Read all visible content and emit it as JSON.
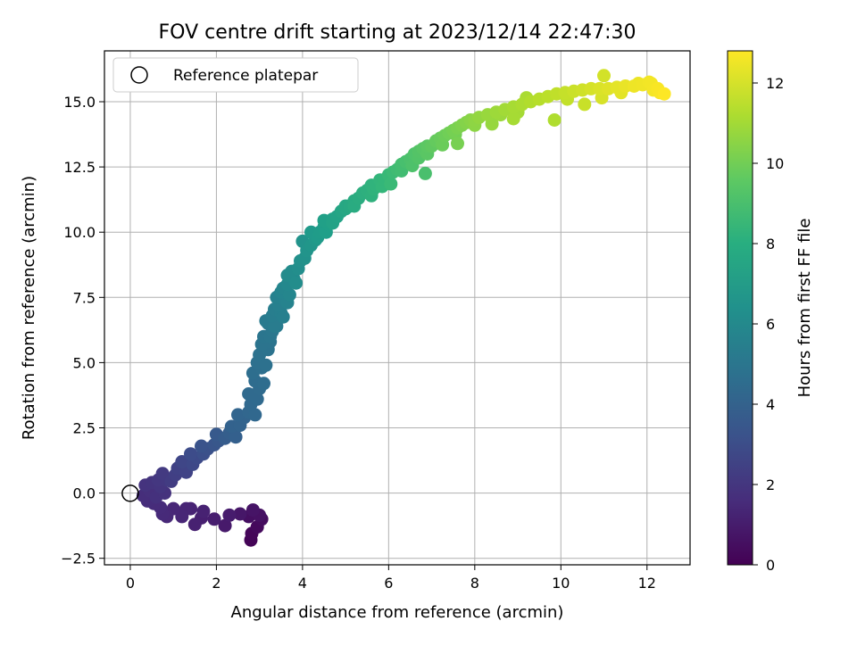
{
  "chart_data": {
    "type": "scatter",
    "title": "FOV centre drift starting at 2023/12/14 22:47:30",
    "xlabel": "Angular distance from reference (arcmin)",
    "ylabel": "Rotation from reference (arcmin)",
    "xlim": [
      -0.6,
      13.0
    ],
    "ylim": [
      -2.75,
      16.95
    ],
    "xticks": [
      0,
      2,
      4,
      6,
      8,
      10,
      12
    ],
    "xtick_labels": [
      "0",
      "2",
      "4",
      "6",
      "8",
      "10",
      "12"
    ],
    "yticks": [
      -2.5,
      0.0,
      2.5,
      5.0,
      7.5,
      10.0,
      12.5,
      15.0
    ],
    "ytick_labels": [
      "−2.5",
      "0.0",
      "2.5",
      "5.0",
      "7.5",
      "10.0",
      "12.5",
      "15.0"
    ],
    "grid": true,
    "legend": {
      "placement": "top-left",
      "entries": [
        "Reference platepar"
      ]
    },
    "reference_point": {
      "x": 0,
      "y": 0
    },
    "colorbar": {
      "label": "Hours from first FF file",
      "range": [
        0,
        12.8
      ],
      "ticks": [
        0,
        2,
        4,
        6,
        8,
        10,
        12
      ],
      "tick_labels": [
        "0",
        "2",
        "4",
        "6",
        "8",
        "10",
        "12"
      ],
      "colormap": "viridis"
    },
    "series": [
      {
        "points": [
          [
            2.8,
            -1.8,
            0.1
          ],
          [
            2.82,
            -1.55,
            0.2
          ],
          [
            2.95,
            -1.3,
            0.3
          ],
          [
            3.05,
            -1.0,
            0.4
          ],
          [
            2.75,
            -0.9,
            0.5
          ],
          [
            3.0,
            -0.85,
            0.6
          ],
          [
            2.85,
            -0.65,
            0.7
          ],
          [
            2.55,
            -0.8,
            0.8
          ],
          [
            2.2,
            -1.25,
            0.9
          ],
          [
            2.3,
            -0.85,
            1.0
          ],
          [
            1.95,
            -1.0,
            1.05
          ],
          [
            1.65,
            -0.95,
            1.1
          ],
          [
            1.5,
            -1.2,
            1.15
          ],
          [
            1.7,
            -0.7,
            1.2
          ],
          [
            1.4,
            -0.6,
            1.25
          ],
          [
            1.3,
            -0.6,
            1.3
          ],
          [
            1.2,
            -0.9,
            1.35
          ],
          [
            1.0,
            -0.6,
            1.4
          ],
          [
            0.85,
            -0.9,
            1.45
          ],
          [
            0.75,
            -0.8,
            1.5
          ],
          [
            0.7,
            -0.55,
            1.55
          ],
          [
            0.55,
            -0.4,
            1.6
          ],
          [
            0.4,
            -0.3,
            1.65
          ],
          [
            0.3,
            -0.1,
            1.7
          ],
          [
            0.45,
            0.1,
            1.75
          ],
          [
            0.6,
            -0.15,
            1.8
          ],
          [
            0.8,
            0.0,
            1.85
          ],
          [
            0.35,
            0.3,
            1.9
          ],
          [
            0.5,
            0.4,
            1.95
          ],
          [
            0.7,
            0.25,
            2.0
          ],
          [
            0.65,
            0.5,
            2.05
          ],
          [
            0.85,
            0.5,
            2.1
          ],
          [
            0.75,
            0.75,
            2.2
          ],
          [
            0.95,
            0.45,
            2.3
          ],
          [
            1.05,
            0.7,
            2.4
          ],
          [
            1.1,
            0.95,
            2.5
          ],
          [
            1.3,
            0.8,
            2.6
          ],
          [
            1.2,
            1.2,
            2.7
          ],
          [
            1.45,
            1.1,
            2.8
          ],
          [
            1.55,
            1.35,
            2.9
          ],
          [
            1.4,
            1.5,
            3.0
          ],
          [
            1.7,
            1.5,
            3.1
          ],
          [
            1.8,
            1.7,
            3.2
          ],
          [
            1.65,
            1.8,
            3.3
          ],
          [
            1.95,
            1.85,
            3.4
          ],
          [
            2.05,
            2.0,
            3.5
          ],
          [
            2.0,
            2.25,
            3.6
          ],
          [
            2.2,
            2.1,
            3.7
          ],
          [
            2.3,
            2.3,
            3.8
          ],
          [
            2.45,
            2.15,
            3.9
          ],
          [
            2.35,
            2.55,
            4.0
          ],
          [
            2.55,
            2.6,
            4.05
          ],
          [
            2.65,
            2.9,
            4.1
          ],
          [
            2.5,
            3.0,
            4.15
          ],
          [
            2.75,
            3.1,
            4.2
          ],
          [
            2.9,
            3.0,
            4.25
          ],
          [
            2.8,
            3.4,
            4.3
          ],
          [
            2.95,
            3.6,
            4.35
          ],
          [
            2.75,
            3.8,
            4.4
          ],
          [
            3.0,
            4.0,
            4.45
          ],
          [
            2.9,
            4.3,
            4.5
          ],
          [
            3.1,
            4.2,
            4.55
          ],
          [
            2.85,
            4.6,
            4.6
          ],
          [
            3.05,
            4.8,
            4.65
          ],
          [
            2.95,
            5.0,
            4.7
          ],
          [
            3.15,
            4.9,
            4.75
          ],
          [
            3.0,
            5.3,
            4.8
          ],
          [
            3.2,
            5.5,
            4.85
          ],
          [
            3.05,
            5.7,
            4.9
          ],
          [
            3.25,
            5.8,
            4.95
          ],
          [
            3.1,
            6.0,
            5.0
          ],
          [
            3.3,
            6.2,
            5.1
          ],
          [
            3.2,
            6.5,
            5.2
          ],
          [
            3.4,
            6.4,
            5.3
          ],
          [
            3.3,
            6.8,
            5.4
          ],
          [
            3.5,
            6.9,
            5.5
          ],
          [
            3.45,
            7.2,
            5.6
          ],
          [
            3.6,
            7.4,
            5.7
          ],
          [
            3.5,
            7.7,
            5.8
          ],
          [
            3.7,
            7.6,
            5.9
          ],
          [
            3.65,
            8.0,
            6.0
          ],
          [
            3.8,
            8.2,
            6.1
          ],
          [
            3.75,
            8.5,
            6.2
          ],
          [
            3.9,
            8.6,
            6.3
          ],
          [
            3.95,
            8.9,
            6.4
          ],
          [
            4.05,
            9.0,
            6.5
          ],
          [
            4.1,
            9.3,
            6.6
          ],
          [
            4.2,
            9.5,
            6.7
          ],
          [
            4.3,
            9.7,
            6.8
          ],
          [
            4.2,
            10.0,
            6.9
          ],
          [
            4.4,
            10.0,
            7.0
          ],
          [
            4.5,
            10.2,
            7.1
          ],
          [
            4.6,
            10.3,
            7.2
          ],
          [
            4.7,
            10.5,
            7.3
          ],
          [
            4.8,
            10.6,
            7.4
          ],
          [
            4.9,
            10.8,
            7.5
          ],
          [
            5.0,
            10.9,
            7.6
          ],
          [
            5.1,
            11.0,
            7.7
          ],
          [
            5.2,
            11.2,
            7.8
          ],
          [
            5.3,
            11.3,
            7.9
          ],
          [
            5.4,
            11.5,
            8.0
          ],
          [
            5.5,
            11.6,
            8.1
          ],
          [
            5.6,
            11.8,
            8.2
          ],
          [
            5.7,
            11.8,
            8.3
          ],
          [
            5.8,
            12.0,
            8.4
          ],
          [
            5.9,
            12.0,
            8.5
          ],
          [
            6.0,
            12.2,
            8.6
          ],
          [
            6.1,
            12.3,
            8.7
          ],
          [
            6.2,
            12.4,
            8.8
          ],
          [
            6.3,
            12.6,
            8.9
          ],
          [
            6.4,
            12.7,
            9.0
          ],
          [
            6.5,
            12.8,
            9.1
          ],
          [
            6.6,
            13.0,
            9.2
          ],
          [
            6.7,
            13.1,
            9.3
          ],
          [
            6.8,
            13.2,
            9.4
          ],
          [
            6.9,
            13.3,
            9.5
          ],
          [
            7.0,
            13.3,
            9.6
          ],
          [
            7.1,
            13.5,
            9.7
          ],
          [
            7.2,
            13.6,
            9.8
          ],
          [
            7.3,
            13.7,
            9.9
          ],
          [
            7.4,
            13.8,
            10.0
          ],
          [
            7.5,
            13.9,
            10.1
          ],
          [
            7.6,
            14.0,
            10.2
          ],
          [
            7.7,
            14.1,
            10.3
          ],
          [
            7.8,
            14.2,
            10.4
          ],
          [
            7.9,
            14.3,
            10.5
          ],
          [
            8.0,
            14.3,
            10.6
          ],
          [
            8.1,
            14.4,
            10.7
          ],
          [
            8.3,
            14.5,
            10.8
          ],
          [
            8.5,
            14.6,
            10.9
          ],
          [
            8.7,
            14.7,
            11.0
          ],
          [
            8.9,
            14.8,
            11.1
          ],
          [
            9.1,
            14.9,
            11.2
          ],
          [
            9.3,
            15.0,
            11.3
          ],
          [
            9.5,
            15.1,
            11.4
          ],
          [
            9.7,
            15.2,
            11.5
          ],
          [
            9.9,
            15.3,
            11.6
          ],
          [
            10.1,
            15.35,
            11.7
          ],
          [
            10.3,
            15.4,
            11.8
          ],
          [
            10.5,
            15.45,
            11.9
          ],
          [
            10.7,
            15.5,
            12.0
          ],
          [
            10.9,
            15.5,
            12.1
          ],
          [
            11.1,
            15.5,
            12.2
          ],
          [
            11.3,
            15.55,
            12.3
          ],
          [
            11.5,
            15.6,
            12.4
          ],
          [
            11.7,
            15.6,
            12.5
          ],
          [
            11.9,
            15.65,
            12.55
          ],
          [
            12.1,
            15.7,
            12.6
          ],
          [
            12.25,
            15.5,
            12.7
          ],
          [
            12.4,
            15.3,
            12.8
          ],
          [
            11.0,
            16.0,
            11.95
          ],
          [
            11.8,
            15.7,
            12.45
          ],
          [
            12.05,
            15.75,
            12.58
          ],
          [
            12.15,
            15.45,
            12.62
          ],
          [
            12.3,
            15.35,
            12.72
          ],
          [
            10.55,
            14.9,
            11.75
          ],
          [
            10.95,
            15.15,
            12.05
          ],
          [
            9.85,
            14.3,
            11.25
          ],
          [
            10.15,
            15.1,
            11.65
          ],
          [
            11.4,
            15.35,
            12.28
          ],
          [
            9.0,
            14.6,
            11.05
          ],
          [
            9.2,
            15.15,
            11.15
          ],
          [
            8.6,
            14.5,
            10.85
          ],
          [
            8.4,
            14.15,
            10.75
          ],
          [
            8.9,
            14.35,
            11.08
          ],
          [
            7.6,
            13.4,
            10.15
          ],
          [
            8.0,
            14.1,
            10.55
          ],
          [
            7.25,
            13.35,
            9.85
          ],
          [
            7.55,
            13.75,
            10.05
          ],
          [
            6.7,
            12.85,
            9.25
          ],
          [
            6.3,
            12.35,
            8.85
          ],
          [
            6.05,
            11.85,
            8.65
          ],
          [
            6.9,
            13.0,
            9.45
          ],
          [
            6.55,
            12.55,
            9.15
          ],
          [
            6.85,
            12.25,
            9.05
          ],
          [
            5.65,
            11.65,
            8.25
          ],
          [
            5.85,
            11.75,
            8.45
          ],
          [
            5.0,
            11.0,
            7.65
          ],
          [
            5.6,
            11.4,
            8.15
          ],
          [
            5.2,
            11.0,
            7.85
          ],
          [
            4.55,
            10.0,
            7.15
          ],
          [
            4.35,
            9.8,
            6.95
          ],
          [
            4.7,
            10.35,
            7.35
          ],
          [
            4.0,
            9.65,
            6.55
          ],
          [
            4.5,
            10.45,
            7.25
          ],
          [
            3.65,
            8.35,
            6.15
          ],
          [
            3.85,
            8.05,
            6.25
          ],
          [
            3.55,
            7.85,
            5.85
          ],
          [
            3.4,
            7.5,
            5.65
          ],
          [
            3.65,
            7.3,
            5.75
          ],
          [
            3.35,
            7.05,
            5.45
          ],
          [
            3.55,
            6.75,
            5.55
          ],
          [
            3.25,
            6.0,
            5.05
          ],
          [
            3.15,
            6.6,
            5.25
          ],
          [
            3.35,
            6.4,
            5.35
          ]
        ]
      }
    ]
  }
}
